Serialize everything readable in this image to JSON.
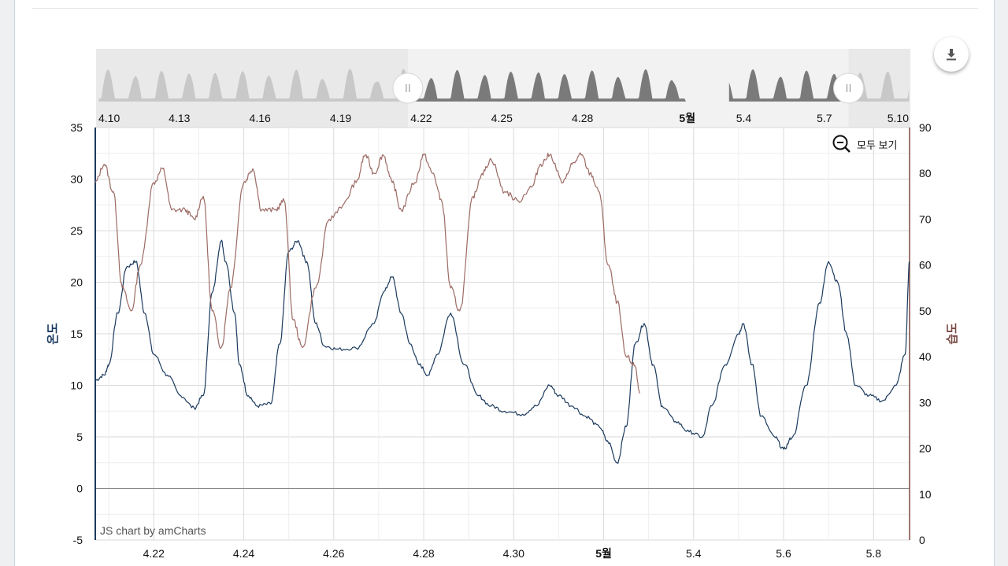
{
  "chart_data": {
    "type": "line",
    "title": "",
    "xlabel": "",
    "left_axis": {
      "title": "온도",
      "range": [
        -5,
        35
      ],
      "ticks": [
        "35",
        "30",
        "25",
        "20",
        "15",
        "10",
        "5",
        "0",
        "-5"
      ]
    },
    "right_axis": {
      "title": "습도",
      "range": [
        0,
        90
      ],
      "ticks": [
        "90",
        "80",
        "70",
        "60",
        "50",
        "40",
        "30",
        "20",
        "10",
        "0"
      ]
    },
    "x_ticks": [
      "4.22",
      "4.24",
      "4.26",
      "4.28",
      "4.30",
      "5월",
      "5.4",
      "5.6",
      "5.8"
    ],
    "x_range_days": [
      20.7,
      38.8
    ],
    "navigator_ticks": [
      "4.10",
      "4.13",
      "4.16",
      "4.19",
      "4.22",
      "4.25",
      "4.28",
      "5월",
      "5.4",
      "5.7",
      "5.10"
    ],
    "navigator_range_days": [
      9.9,
      40.2
    ],
    "navigator_selection_days": [
      21.5,
      37.9
    ],
    "gap_days": [
      31.85,
      33.45
    ],
    "series": [
      {
        "name": "온도",
        "axis": "left",
        "color": "#1b3a5e",
        "points": [
          [
            20.7,
            10.5
          ],
          [
            20.9,
            11
          ],
          [
            21.0,
            12
          ],
          [
            21.2,
            17
          ],
          [
            21.4,
            21.5
          ],
          [
            21.6,
            22
          ],
          [
            21.8,
            17
          ],
          [
            22.0,
            13
          ],
          [
            22.3,
            11
          ],
          [
            22.6,
            9
          ],
          [
            22.9,
            7.8
          ],
          [
            23.1,
            9
          ],
          [
            23.3,
            19
          ],
          [
            23.5,
            24
          ],
          [
            23.6,
            22
          ],
          [
            23.8,
            17
          ],
          [
            23.9,
            12
          ],
          [
            24.1,
            9
          ],
          [
            24.3,
            8
          ],
          [
            24.6,
            8.2
          ],
          [
            24.8,
            14
          ],
          [
            25.0,
            23
          ],
          [
            25.2,
            24
          ],
          [
            25.4,
            22
          ],
          [
            25.6,
            16
          ],
          [
            25.8,
            13.8
          ],
          [
            26.1,
            13.5
          ],
          [
            26.5,
            13.6
          ],
          [
            26.9,
            16
          ],
          [
            27.1,
            19
          ],
          [
            27.3,
            20.5
          ],
          [
            27.5,
            17
          ],
          [
            27.7,
            14
          ],
          [
            27.9,
            12
          ],
          [
            28.1,
            11
          ],
          [
            28.3,
            13
          ],
          [
            28.6,
            17
          ],
          [
            28.9,
            12
          ],
          [
            29.2,
            9
          ],
          [
            29.5,
            8
          ],
          [
            29.8,
            7.5
          ],
          [
            30.2,
            7.2
          ],
          [
            30.5,
            8
          ],
          [
            30.8,
            10
          ],
          [
            31.0,
            9
          ],
          [
            31.3,
            8
          ],
          [
            31.6,
            7
          ],
          [
            31.9,
            6
          ],
          [
            32.1,
            4.5
          ],
          [
            32.3,
            2.5
          ],
          [
            32.5,
            6
          ],
          [
            32.7,
            14
          ],
          [
            32.9,
            16
          ],
          [
            33.1,
            12
          ],
          [
            33.3,
            8
          ],
          [
            33.6,
            6.5
          ],
          [
            33.9,
            5.5
          ],
          [
            34.2,
            5
          ],
          [
            34.4,
            8
          ],
          [
            34.7,
            12
          ],
          [
            35.0,
            15
          ],
          [
            35.1,
            16
          ],
          [
            35.3,
            12
          ],
          [
            35.5,
            7
          ],
          [
            35.8,
            5
          ],
          [
            36.0,
            3.8
          ],
          [
            36.2,
            5
          ],
          [
            36.5,
            10
          ],
          [
            36.8,
            18
          ],
          [
            37.0,
            22
          ],
          [
            37.2,
            20
          ],
          [
            37.4,
            15
          ],
          [
            37.6,
            10
          ],
          [
            37.9,
            9
          ],
          [
            38.2,
            8.5
          ],
          [
            38.5,
            10
          ],
          [
            38.7,
            13
          ],
          [
            38.8,
            22
          ]
        ]
      },
      {
        "name": "습도",
        "axis": "right",
        "color": "#9c6a64",
        "points": [
          [
            20.7,
            78
          ],
          [
            20.9,
            82
          ],
          [
            21.1,
            76
          ],
          [
            21.3,
            55
          ],
          [
            21.5,
            50
          ],
          [
            21.7,
            60
          ],
          [
            22.0,
            78
          ],
          [
            22.2,
            81
          ],
          [
            22.4,
            72
          ],
          [
            22.7,
            72
          ],
          [
            22.9,
            70
          ],
          [
            23.1,
            75
          ],
          [
            23.3,
            50
          ],
          [
            23.5,
            42
          ],
          [
            23.7,
            55
          ],
          [
            24.0,
            78
          ],
          [
            24.2,
            81
          ],
          [
            24.4,
            72
          ],
          [
            24.7,
            72
          ],
          [
            24.9,
            74
          ],
          [
            25.1,
            48
          ],
          [
            25.3,
            42
          ],
          [
            25.6,
            55
          ],
          [
            25.9,
            70
          ],
          [
            26.2,
            73
          ],
          [
            26.5,
            78
          ],
          [
            26.7,
            84
          ],
          [
            26.9,
            80
          ],
          [
            27.1,
            84
          ],
          [
            27.3,
            78
          ],
          [
            27.5,
            72
          ],
          [
            27.8,
            78
          ],
          [
            28.0,
            84
          ],
          [
            28.2,
            80
          ],
          [
            28.4,
            74
          ],
          [
            28.6,
            55
          ],
          [
            28.8,
            50
          ],
          [
            29.1,
            75
          ],
          [
            29.3,
            80
          ],
          [
            29.5,
            83
          ],
          [
            29.8,
            76
          ],
          [
            30.1,
            74
          ],
          [
            30.4,
            77
          ],
          [
            30.6,
            82
          ],
          [
            30.8,
            84
          ],
          [
            31.1,
            78
          ],
          [
            31.3,
            82
          ],
          [
            31.5,
            84
          ],
          [
            31.7,
            80
          ],
          [
            31.9,
            76
          ],
          [
            32.1,
            60
          ],
          [
            32.3,
            52
          ],
          [
            32.5,
            40
          ],
          [
            32.7,
            38
          ],
          [
            32.8,
            32
          ]
        ]
      }
    ]
  },
  "ui": {
    "zoom_reset_label": "모두 보기",
    "credit": "JS chart by amCharts"
  }
}
